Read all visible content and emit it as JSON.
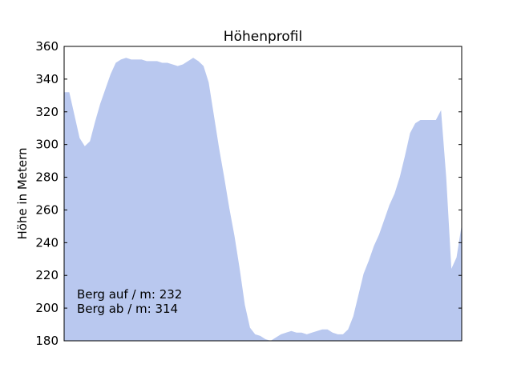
{
  "chart_data": {
    "type": "area",
    "title": "Höhenprofil",
    "xlabel": "",
    "ylabel": "Höhe in Metern",
    "ylim": [
      180,
      360
    ],
    "yticks": [
      180,
      200,
      220,
      240,
      260,
      280,
      300,
      320,
      340,
      360
    ],
    "xticks_visible": false,
    "grid": false,
    "legend": "none",
    "fill_color": "#b9c8ef",
    "y": [
      332,
      332,
      318,
      304,
      299,
      302,
      314,
      325,
      334,
      343,
      350,
      352,
      353,
      352,
      352,
      352,
      351,
      351,
      351,
      350,
      350,
      349,
      348,
      349,
      351,
      353,
      351,
      348,
      338,
      318,
      298,
      280,
      261,
      244,
      224,
      202,
      188,
      184,
      183,
      181,
      180,
      182,
      184,
      185,
      186,
      185,
      185,
      184,
      185,
      186,
      187,
      187,
      185,
      184,
      184,
      187,
      195,
      208,
      221,
      229,
      238,
      245,
      254,
      263,
      270,
      280,
      293,
      307,
      313,
      315,
      315,
      315,
      315,
      321,
      280,
      224,
      231,
      251
    ],
    "annotations": [
      "Berg auf / m: 232",
      "Berg ab / m: 314"
    ]
  }
}
